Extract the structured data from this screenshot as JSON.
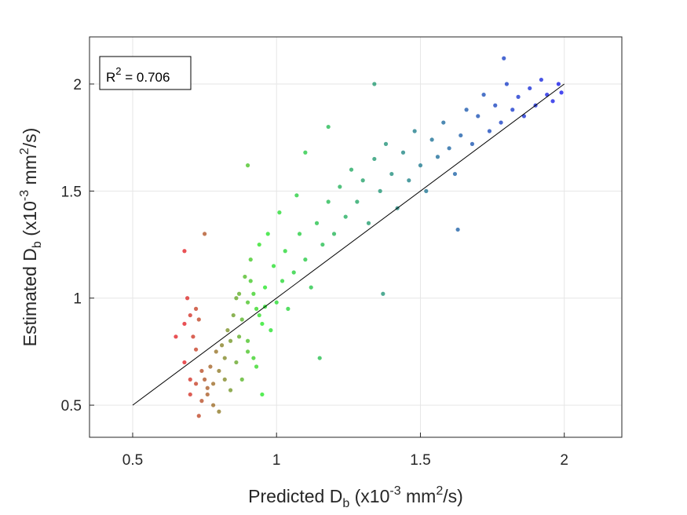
{
  "chart_data": {
    "type": "scatter",
    "xlabel": {
      "main": "Predicted D",
      "sub": "b",
      "pre": " (x10",
      "sup": "-3",
      "post": " mm",
      "sup2": "2",
      "end": "/s)"
    },
    "ylabel": {
      "main": "Estimated D",
      "sub": "b",
      "pre": " (x10",
      "sup": "-3",
      "post": " mm",
      "sup2": "2",
      "end": "/s)"
    },
    "xlim": [
      0.35,
      2.2
    ],
    "ylim": [
      0.35,
      2.22
    ],
    "xticks": [
      0.5,
      1,
      1.5,
      2
    ],
    "yticks": [
      0.5,
      1,
      1.5,
      2
    ],
    "xtick_labels": [
      "0.5",
      "1",
      "1.5",
      "2"
    ],
    "ytick_labels": [
      "0.5",
      "1",
      "1.5",
      "2"
    ],
    "grid": true,
    "annotation": {
      "prefix": "R",
      "sup": "2",
      "value": " = 0.706",
      "placement": "top-left"
    },
    "reference_line": {
      "x": [
        0.5,
        2.0
      ],
      "y": [
        0.5,
        2.0
      ],
      "color": "#000000"
    },
    "color_gradient": [
      "#e3262a",
      "#2be82b",
      "#1a1aee"
    ],
    "series": [
      {
        "points": [
          [
            0.7,
            0.55
          ],
          [
            0.72,
            0.6
          ],
          [
            0.74,
            0.52
          ],
          [
            0.68,
            0.7
          ],
          [
            0.71,
            0.82
          ],
          [
            0.73,
            0.9
          ],
          [
            0.69,
            1.0
          ],
          [
            0.72,
            0.95
          ],
          [
            0.75,
            0.62
          ],
          [
            0.76,
            0.58
          ],
          [
            0.78,
            0.5
          ],
          [
            0.8,
            0.47
          ],
          [
            0.77,
            0.68
          ],
          [
            0.79,
            0.75
          ],
          [
            0.82,
            0.62
          ],
          [
            0.84,
            0.57
          ],
          [
            0.81,
            0.78
          ],
          [
            0.83,
            0.85
          ],
          [
            0.86,
            0.7
          ],
          [
            0.88,
            0.62
          ],
          [
            0.85,
            0.92
          ],
          [
            0.87,
            1.02
          ],
          [
            0.9,
            0.8
          ],
          [
            0.92,
            0.72
          ],
          [
            0.89,
            1.1
          ],
          [
            0.91,
            1.18
          ],
          [
            0.93,
            0.95
          ],
          [
            0.95,
            0.88
          ],
          [
            0.94,
            1.25
          ],
          [
            0.96,
            1.05
          ],
          [
            0.98,
            0.85
          ],
          [
            1.0,
            0.98
          ],
          [
            0.97,
            1.3
          ],
          [
            0.99,
            1.15
          ],
          [
            1.02,
            1.08
          ],
          [
            1.04,
            0.95
          ],
          [
            1.01,
            1.4
          ],
          [
            1.03,
            1.22
          ],
          [
            1.06,
            1.12
          ],
          [
            1.08,
            1.3
          ],
          [
            1.1,
            1.18
          ],
          [
            1.12,
            1.05
          ],
          [
            1.07,
            1.48
          ],
          [
            1.14,
            1.35
          ],
          [
            1.16,
            1.25
          ],
          [
            1.18,
            1.45
          ],
          [
            1.2,
            1.3
          ],
          [
            1.22,
            1.52
          ],
          [
            1.24,
            1.38
          ],
          [
            1.26,
            1.6
          ],
          [
            1.28,
            1.45
          ],
          [
            1.3,
            1.55
          ],
          [
            1.32,
            1.35
          ],
          [
            1.34,
            1.65
          ],
          [
            1.36,
            1.5
          ],
          [
            1.38,
            1.72
          ],
          [
            1.4,
            1.58
          ],
          [
            1.42,
            1.42
          ],
          [
            1.44,
            1.68
          ],
          [
            1.46,
            1.55
          ],
          [
            1.48,
            1.78
          ],
          [
            1.5,
            1.62
          ],
          [
            1.52,
            1.5
          ],
          [
            1.54,
            1.74
          ],
          [
            1.56,
            1.66
          ],
          [
            1.58,
            1.82
          ],
          [
            1.6,
            1.7
          ],
          [
            1.62,
            1.58
          ],
          [
            1.64,
            1.76
          ],
          [
            1.66,
            1.88
          ],
          [
            1.68,
            1.72
          ],
          [
            1.7,
            1.85
          ],
          [
            1.72,
            1.95
          ],
          [
            1.74,
            1.78
          ],
          [
            1.76,
            1.9
          ],
          [
            1.78,
            1.82
          ],
          [
            1.8,
            2.0
          ],
          [
            1.82,
            1.88
          ],
          [
            1.84,
            1.94
          ],
          [
            1.86,
            1.85
          ],
          [
            1.88,
            1.98
          ],
          [
            1.9,
            1.9
          ],
          [
            1.92,
            2.02
          ],
          [
            1.94,
            1.95
          ],
          [
            1.96,
            1.92
          ],
          [
            1.98,
            2.0
          ],
          [
            1.99,
            1.96
          ],
          [
            1.79,
            2.12
          ],
          [
            1.34,
            2.0
          ],
          [
            1.63,
            1.32
          ],
          [
            1.37,
            1.02
          ],
          [
            0.68,
            1.22
          ],
          [
            0.65,
            0.82
          ],
          [
            0.75,
            1.3
          ],
          [
            0.73,
            0.45
          ],
          [
            0.95,
            0.55
          ],
          [
            1.15,
            0.72
          ],
          [
            1.1,
            1.68
          ],
          [
            0.9,
            1.62
          ],
          [
            1.18,
            1.8
          ],
          [
            0.86,
            1.0
          ],
          [
            0.88,
            0.9
          ],
          [
            0.9,
            0.98
          ],
          [
            0.92,
            1.02
          ],
          [
            0.94,
            0.92
          ],
          [
            0.9,
            0.75
          ],
          [
            0.93,
            0.68
          ],
          [
            0.87,
            0.82
          ],
          [
            0.96,
            0.96
          ],
          [
            0.91,
            1.08
          ],
          [
            0.8,
            0.66
          ],
          [
            0.82,
            0.72
          ],
          [
            0.78,
            0.6
          ],
          [
            0.84,
            0.8
          ],
          [
            0.76,
            0.55
          ],
          [
            0.74,
            0.66
          ],
          [
            0.7,
            0.62
          ],
          [
            0.72,
            0.76
          ],
          [
            0.68,
            0.88
          ],
          [
            0.7,
            0.92
          ]
        ]
      }
    ]
  }
}
